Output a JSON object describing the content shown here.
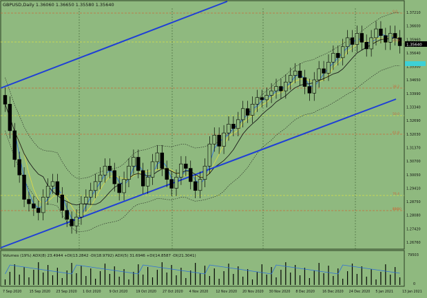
{
  "header": {
    "main_title": "GBPUSD,Daily  1.36060 1.36650 1.35580 1.35640",
    "indicator_title": "Volumes (19%)  ADX(8) 23.4944 +DI(13.2842 -DI(18.9792)  ADX(5) 31.6946 +DI(14.8587 -DI(21.3041)"
  },
  "price_axis": {
    "labels": [
      "1.37210",
      "1.36600",
      "1.35960",
      "1.35640",
      "1.35300",
      "1.34650",
      "1.33990",
      "1.33340",
      "1.32690",
      "1.32030",
      "1.31370",
      "1.30700",
      "1.30050",
      "1.29410",
      "1.28750",
      "1.28080",
      "1.27420",
      "1.26760"
    ],
    "current_price": "1.35640"
  },
  "indicator_axis": {
    "top_label": "79503",
    "bottom_label": "0"
  },
  "date_axis": [
    "7 Sep 2020",
    "15 Sep 2020",
    "23 Sep 2020",
    "1 Oct 2020",
    "9 Oct 2020",
    "19 Oct 2020",
    "27 Oct 2020",
    "4 Nov 2020",
    "12 Nov 2020",
    "20 Nov 2020",
    "30 Nov 2020",
    "8 Dec 2020",
    "16 Dec 2020",
    "24 Dec 2020",
    "5 Jan 2021",
    "13 Jan 2021"
  ],
  "fib_labels": [
    "0.0",
    "23.6",
    "38.2",
    "50.0",
    "61.8",
    "76.4",
    "100.0",
    "61.8"
  ],
  "colors": {
    "background": "#8fb97f",
    "channel": "#1f3fd6",
    "fib_line": "#c86a3a",
    "level_line": "#d8e04a",
    "bull_candle": "#8fb97f",
    "bear_candle": "#000000",
    "current_price_tag": "#3dd1d6"
  },
  "chart_data": {
    "type": "candlestick",
    "symbol": "GBPUSD",
    "timeframe": "Daily",
    "ohlc_last": {
      "open": 1.3606,
      "high": 1.3665,
      "low": 1.3558,
      "close": 1.3564
    },
    "ylim": [
      1.2676,
      1.3721
    ],
    "series": [
      {
        "name": "price",
        "values": [
          1.33,
          1.318,
          1.305,
          1.298,
          1.287,
          1.285,
          1.283,
          1.281,
          1.288,
          1.293,
          1.295,
          1.289,
          1.282,
          1.278,
          1.275,
          1.279,
          1.285,
          1.288,
          1.291,
          1.295,
          1.298,
          1.302,
          1.3,
          1.294,
          1.29,
          1.296,
          1.302,
          1.306,
          1.3,
          1.293,
          1.297,
          1.304,
          1.308,
          1.301,
          1.296,
          1.292,
          1.297,
          1.303,
          1.301,
          1.295,
          1.291,
          1.296,
          1.302,
          1.312,
          1.316,
          1.311,
          1.317,
          1.321,
          1.319,
          1.323,
          1.328,
          1.325,
          1.33,
          1.333,
          1.332,
          1.334,
          1.336,
          1.338,
          1.336,
          1.34,
          1.343,
          1.345,
          1.342,
          1.338,
          1.335,
          1.341,
          1.346,
          1.344,
          1.349,
          1.353,
          1.351,
          1.356,
          1.36,
          1.357,
          1.362,
          1.358,
          1.355,
          1.36,
          1.364,
          1.361,
          1.358,
          1.362,
          1.36,
          1.3564
        ]
      }
    ]
  }
}
